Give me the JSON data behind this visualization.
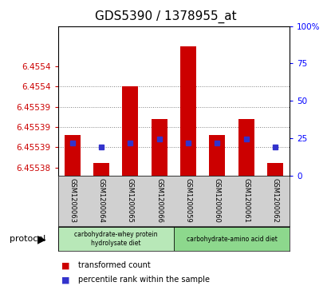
{
  "title": "GDS5390 / 1378955_at",
  "samples": [
    "GSM1200063",
    "GSM1200064",
    "GSM1200065",
    "GSM1200066",
    "GSM1200059",
    "GSM1200060",
    "GSM1200061",
    "GSM1200062"
  ],
  "red_tops": [
    6.455388,
    6.455381,
    6.4554,
    6.455392,
    6.45541,
    6.455388,
    6.455392,
    6.455381
  ],
  "red_bottoms": [
    6.455378,
    6.455378,
    6.455378,
    6.455378,
    6.455378,
    6.455378,
    6.455378,
    6.455378
  ],
  "blue_y": [
    6.455386,
    6.455385,
    6.455386,
    6.455387,
    6.455386,
    6.455386,
    6.455387,
    6.455385
  ],
  "ylim_lo": 6.455378,
  "ylim_hi": 6.455415,
  "left_yticks": [
    6.45538,
    6.455385,
    6.45539,
    6.455395,
    6.4554,
    6.455405
  ],
  "left_yticklabels": [
    "6.45538",
    "6.45539",
    "6.45539",
    "6.45539",
    "6.4554",
    "6.4554"
  ],
  "right_yticks": [
    0,
    25,
    50,
    75,
    100
  ],
  "right_yticklabels": [
    "0",
    "25",
    "50",
    "75",
    "100%"
  ],
  "grid_yticks": [
    6.455385,
    6.45539,
    6.455395,
    6.4554
  ],
  "protocol_groups": [
    {
      "label": "carbohydrate-whey protein\nhydrolysate diet",
      "start": 0,
      "end": 4,
      "color": "#b8e8b8"
    },
    {
      "label": "carbohydrate-amino acid diet",
      "start": 4,
      "end": 8,
      "color": "#8dd88d"
    }
  ],
  "legend_red_label": "transformed count",
  "legend_blue_label": "percentile rank within the sample",
  "protocol_label": "protocol",
  "bar_width": 0.55,
  "red_color": "#cc0000",
  "blue_color": "#3333cc",
  "bg_plot": "#ffffff",
  "bg_sample_area": "#d0d0d0",
  "title_fontsize": 11,
  "tick_fontsize": 7.5
}
